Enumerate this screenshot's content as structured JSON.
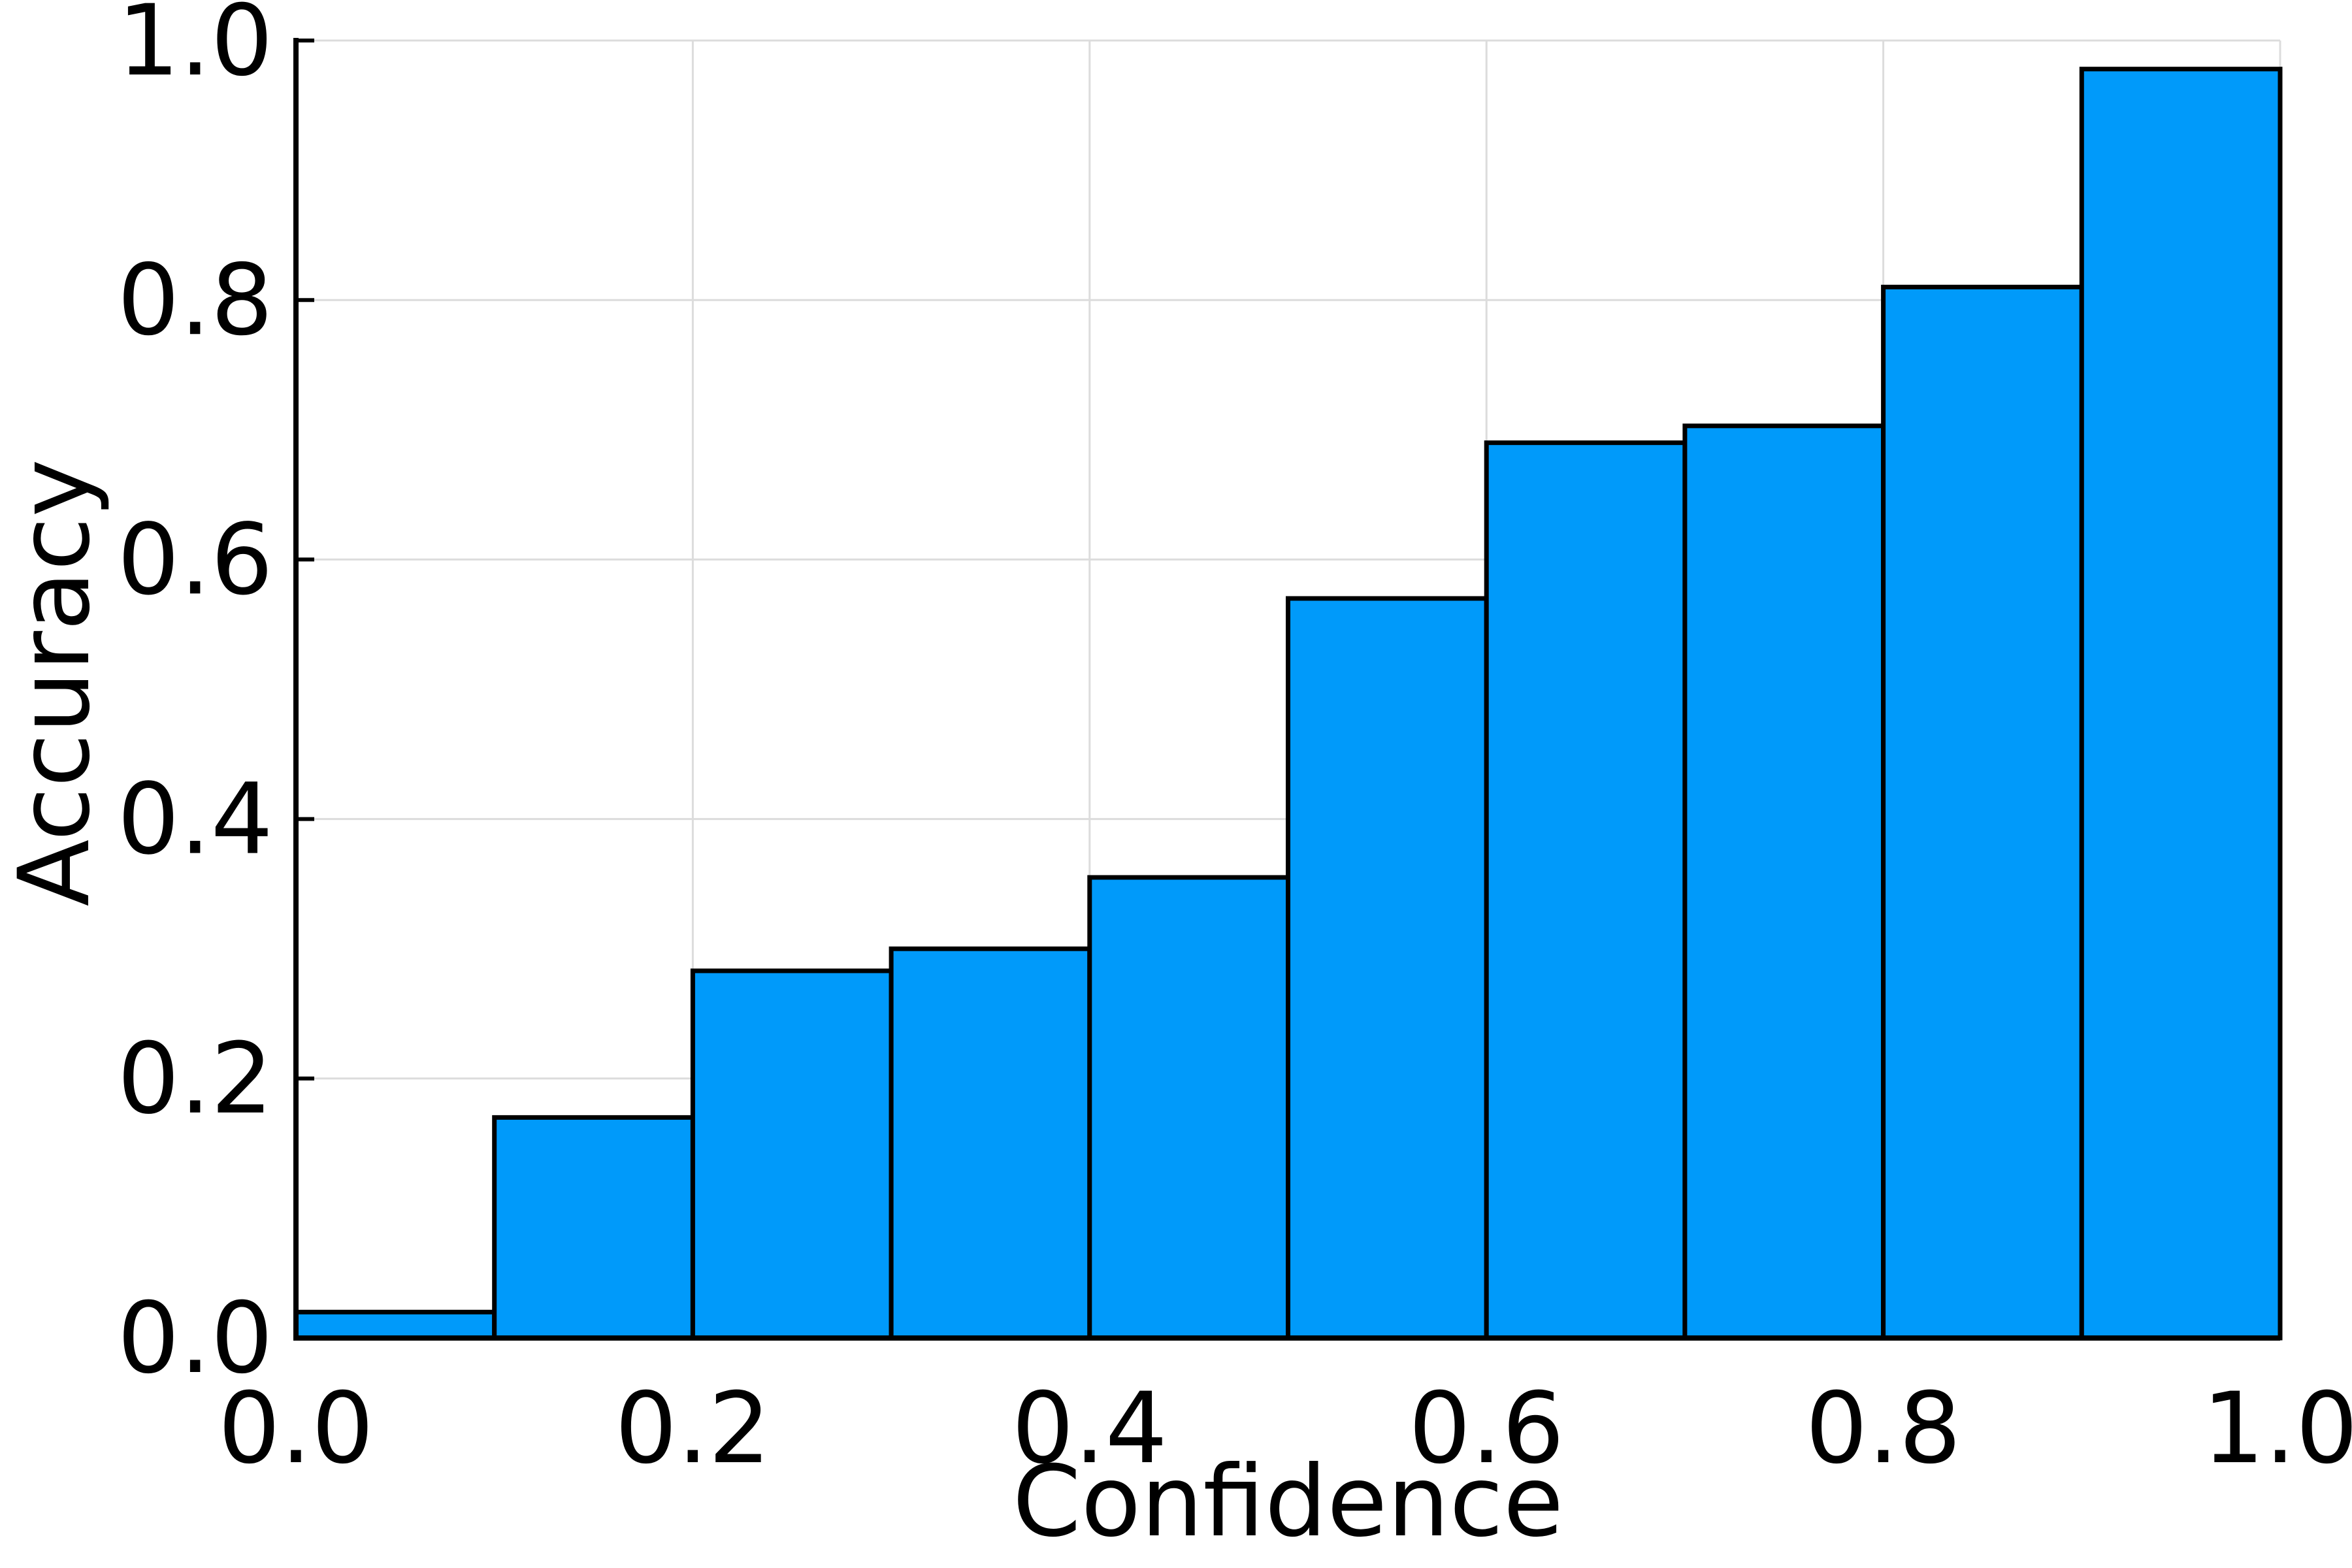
{
  "chart_data": {
    "type": "bar",
    "title": "",
    "xlabel": "Confidence",
    "ylabel": "Accuracy",
    "xlim": [
      0.0,
      1.0
    ],
    "ylim": [
      0.0,
      1.0
    ],
    "grid": true,
    "legend": "none",
    "bar_color": "#009AFA",
    "edge_color": "#000000",
    "bins": [
      {
        "x0": 0.0,
        "x1": 0.1,
        "value": 0.02
      },
      {
        "x0": 0.1,
        "x1": 0.2,
        "value": 0.17
      },
      {
        "x0": 0.2,
        "x1": 0.3,
        "value": 0.283
      },
      {
        "x0": 0.3,
        "x1": 0.4,
        "value": 0.3
      },
      {
        "x0": 0.4,
        "x1": 0.5,
        "value": 0.355
      },
      {
        "x0": 0.5,
        "x1": 0.6,
        "value": 0.57
      },
      {
        "x0": 0.6,
        "x1": 0.7,
        "value": 0.69
      },
      {
        "x0": 0.7,
        "x1": 0.8,
        "value": 0.703
      },
      {
        "x0": 0.8,
        "x1": 0.9,
        "value": 0.81
      },
      {
        "x0": 0.9,
        "x1": 1.0,
        "value": 0.978
      }
    ],
    "x_ticks": [
      {
        "value": 0.0,
        "label": "0.0"
      },
      {
        "value": 0.2,
        "label": "0.2"
      },
      {
        "value": 0.4,
        "label": "0.4"
      },
      {
        "value": 0.6,
        "label": "0.6"
      },
      {
        "value": 0.8,
        "label": "0.8"
      },
      {
        "value": 1.0,
        "label": "1.0"
      }
    ],
    "y_ticks": [
      {
        "value": 0.0,
        "label": "0.0"
      },
      {
        "value": 0.2,
        "label": "0.2"
      },
      {
        "value": 0.4,
        "label": "0.4"
      },
      {
        "value": 0.6,
        "label": "0.6"
      },
      {
        "value": 0.8,
        "label": "0.8"
      },
      {
        "value": 1.0,
        "label": "1.0"
      }
    ]
  }
}
